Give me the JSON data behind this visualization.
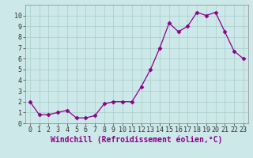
{
  "x": [
    0,
    1,
    2,
    3,
    4,
    5,
    6,
    7,
    8,
    9,
    10,
    11,
    12,
    13,
    14,
    15,
    16,
    17,
    18,
    19,
    20,
    21,
    22,
    23
  ],
  "y": [
    2.0,
    0.8,
    0.8,
    1.0,
    1.2,
    0.5,
    0.5,
    0.7,
    1.8,
    2.0,
    2.0,
    2.0,
    3.4,
    5.0,
    7.0,
    9.3,
    8.5,
    9.0,
    10.3,
    10.0,
    10.3,
    8.5,
    6.7,
    6.0
  ],
  "xlim": [
    -0.5,
    23.5
  ],
  "ylim": [
    0,
    11
  ],
  "yticks": [
    0,
    1,
    2,
    3,
    4,
    5,
    6,
    7,
    8,
    9,
    10
  ],
  "xticks": [
    0,
    1,
    2,
    3,
    4,
    5,
    6,
    7,
    8,
    9,
    10,
    11,
    12,
    13,
    14,
    15,
    16,
    17,
    18,
    19,
    20,
    21,
    22,
    23
  ],
  "xlabel": "Windchill (Refroidissement éolien,°C)",
  "line_color": "#8b008b",
  "marker": "D",
  "marker_size": 2.5,
  "bg_color": "#cce8e8",
  "grid_color": "#aacccc",
  "label_fontsize": 7,
  "tick_fontsize": 6
}
